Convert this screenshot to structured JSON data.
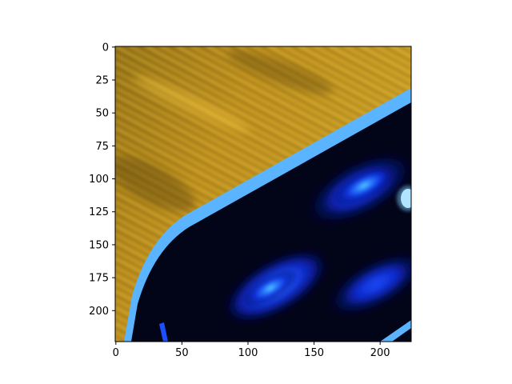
{
  "chart_data": {
    "type": "image",
    "title": "",
    "xlabel": "",
    "ylabel": "",
    "image_width": 224,
    "image_height": 224,
    "xlim": [
      -0.5,
      223.5
    ],
    "ylim": [
      223.5,
      -0.5
    ],
    "y_inverted": true,
    "x_ticks": [
      0,
      50,
      100,
      150,
      200
    ],
    "y_ticks": [
      0,
      25,
      50,
      75,
      100,
      125,
      150,
      175,
      200
    ],
    "grid": false,
    "content": "close-up photo: striped golden-brown wood surface (top-left) and dark navy object with glowing blue highlights and light-blue edge (bottom-right)",
    "colors": {
      "wood_light": "#e0b030",
      "wood_dark": "#6e5410",
      "object_dark": "#020418",
      "object_blue": "#1040ff",
      "highlight": "#40c8ff",
      "edge": "#5ab4ff"
    }
  }
}
